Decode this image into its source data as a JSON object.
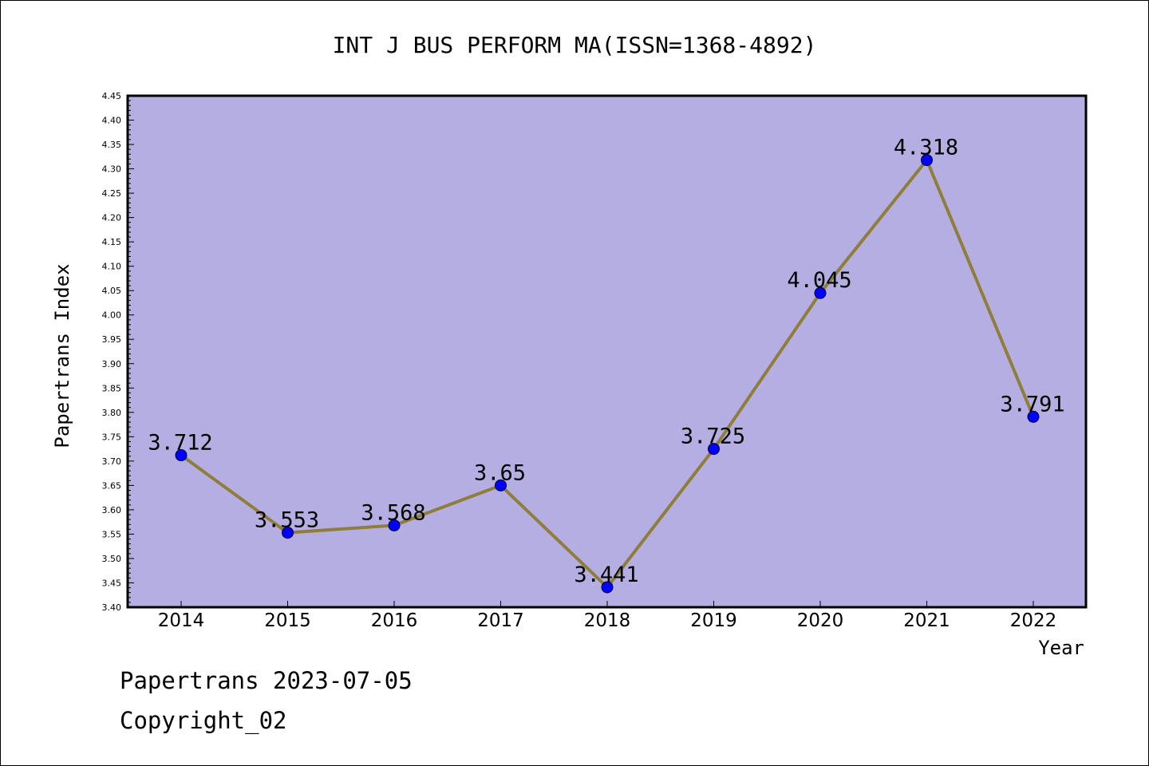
{
  "chart_data": {
    "type": "line",
    "title": "INT J BUS PERFORM MA(ISSN=1368-4892)",
    "xlabel": "Year",
    "ylabel": "Papertrans Index",
    "categories": [
      "2014",
      "2015",
      "2016",
      "2017",
      "2018",
      "2019",
      "2020",
      "2021",
      "2022"
    ],
    "values": [
      3.712,
      3.553,
      3.568,
      3.65,
      3.441,
      3.725,
      4.045,
      4.318,
      3.791
    ],
    "data_labels": [
      "3.712",
      "3.553",
      "3.568",
      "3.65",
      "3.441",
      "3.725",
      "4.045",
      "4.318",
      "3.791"
    ],
    "ylim": [
      3.4,
      4.45
    ],
    "yticks": [
      "3.40",
      "3.45",
      "3.50",
      "3.55",
      "3.60",
      "3.65",
      "3.70",
      "3.75",
      "3.80",
      "3.85",
      "3.90",
      "3.95",
      "4.00",
      "4.05",
      "4.10",
      "4.15",
      "4.20",
      "4.25",
      "4.30",
      "4.35",
      "4.40",
      "4.45"
    ],
    "grid": false,
    "legend": "none",
    "colors": {
      "plot_background": "#b5aee2",
      "line": "#8f7e3a",
      "marker": "#0000ff"
    }
  },
  "footer": {
    "line1": "Papertrans 2023-07-05",
    "line2": "Copyright_02"
  }
}
